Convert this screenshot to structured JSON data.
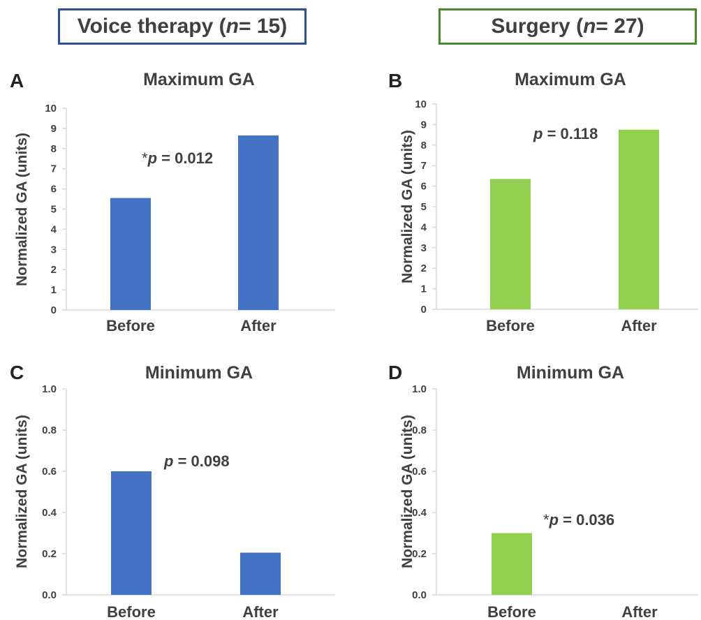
{
  "groups": {
    "left": {
      "label_prefix": "Voice therapy (",
      "n_symbol": "n",
      "label_suffix": " = 15)",
      "border_color": "#2f4f8f"
    },
    "right": {
      "label_prefix": "Surgery (",
      "n_symbol": "n",
      "label_suffix": " = 27)",
      "border_color": "#4a8a2c"
    }
  },
  "colors": {
    "voice_bar": "#4472c4",
    "surgery_bar": "#92d050"
  },
  "chart_data": [
    {
      "panel": "A",
      "type": "bar",
      "title": "Maximum GA",
      "ylabel": "Normalized GA (units)",
      "categories": [
        "Before",
        "After"
      ],
      "values": [
        5.55,
        8.65
      ],
      "ylim": [
        0,
        10
      ],
      "yticks": [
        0,
        1,
        2,
        3,
        4,
        5,
        6,
        7,
        8,
        9,
        10
      ],
      "tick_decimals": 0,
      "annotation": {
        "star": "*",
        "p_symbol": "p",
        "rest": " = 0.012"
      },
      "color": "#4472c4"
    },
    {
      "panel": "B",
      "type": "bar",
      "title": "Maximum GA",
      "ylabel": "Normalized GA (units)",
      "categories": [
        "Before",
        "After"
      ],
      "values": [
        6.35,
        8.75
      ],
      "ylim": [
        0,
        10
      ],
      "yticks": [
        0,
        1,
        2,
        3,
        4,
        5,
        6,
        7,
        8,
        9,
        10
      ],
      "tick_decimals": 0,
      "annotation": {
        "star": "",
        "p_symbol": "p",
        "rest": " = 0.118"
      },
      "color": "#92d050"
    },
    {
      "panel": "C",
      "type": "bar",
      "title": "Minimum GA",
      "ylabel": "Normalized GA (units)",
      "categories": [
        "Before",
        "After"
      ],
      "values": [
        0.6,
        0.205
      ],
      "ylim": [
        0,
        1.0
      ],
      "yticks": [
        0,
        0.2,
        0.4,
        0.6,
        0.8,
        1.0
      ],
      "tick_decimals": 1,
      "annotation": {
        "star": "",
        "p_symbol": "p",
        "rest": " = 0.098"
      },
      "color": "#4472c4"
    },
    {
      "panel": "D",
      "type": "bar",
      "title": "Minimum GA",
      "ylabel": "Normalized GA (units)",
      "categories": [
        "Before",
        "After"
      ],
      "values": [
        0.3,
        0
      ],
      "ylim": [
        0,
        1.0
      ],
      "yticks": [
        0,
        0.2,
        0.4,
        0.6,
        0.8,
        1.0
      ],
      "tick_decimals": 1,
      "annotation": {
        "star": "*",
        "p_symbol": "p",
        "rest": " = 0.036"
      },
      "color": "#92d050"
    }
  ]
}
